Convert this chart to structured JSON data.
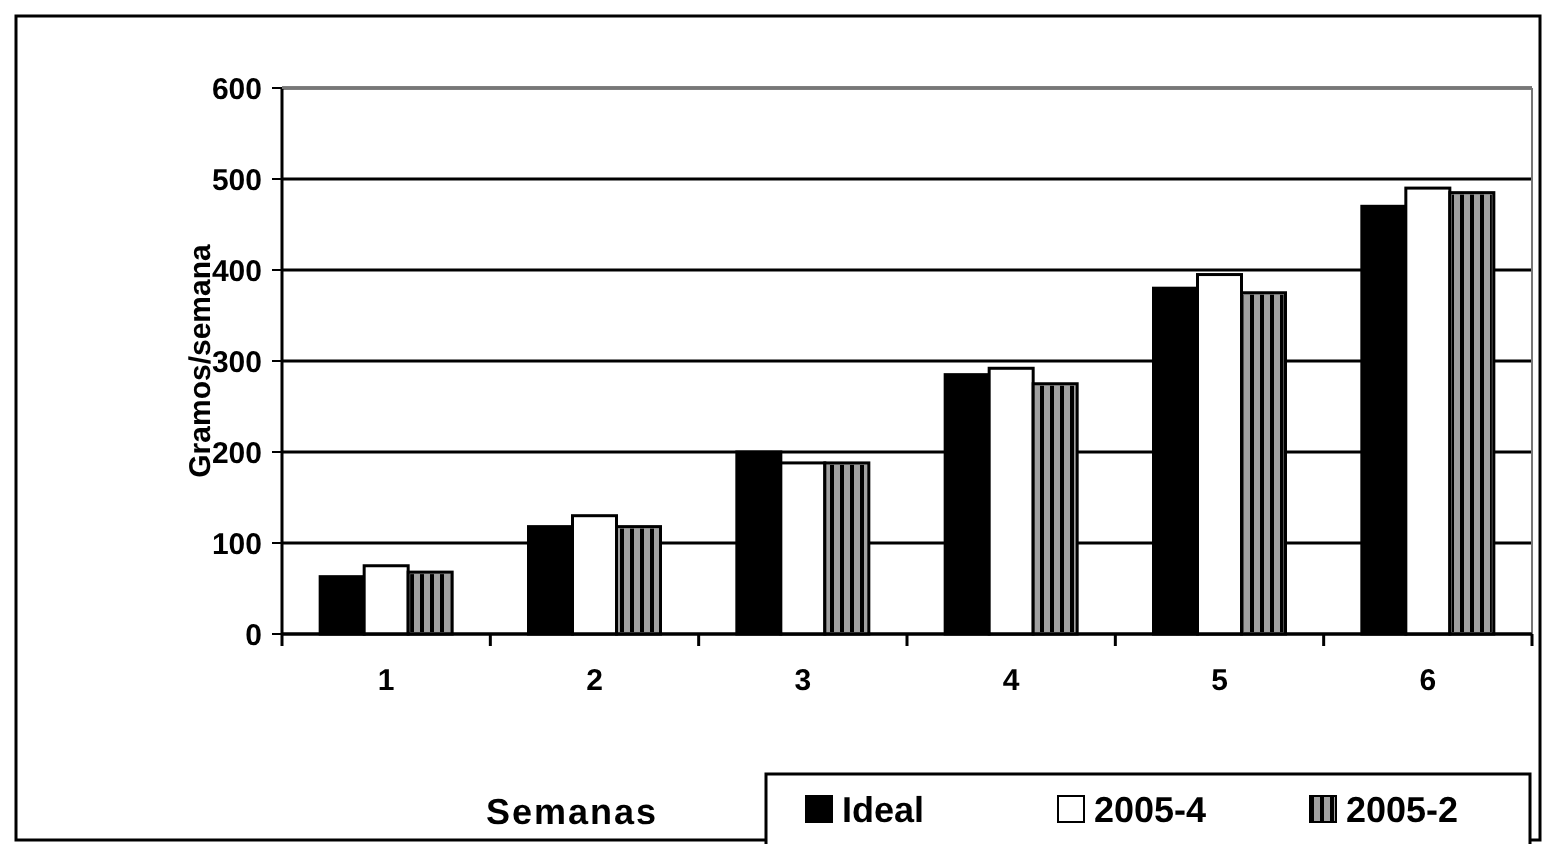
{
  "chart_data": {
    "type": "bar",
    "xlabel": "Semanas",
    "ylabel": "Gramos/semana",
    "categories": [
      "1",
      "2",
      "3",
      "4",
      "5",
      "6"
    ],
    "series": [
      {
        "name": "Ideal",
        "color": "#000000",
        "values": [
          63,
          118,
          200,
          285,
          380,
          470
        ]
      },
      {
        "name": "2005-4",
        "color": "#ffffff",
        "values": [
          75,
          130,
          188,
          292,
          395,
          490
        ]
      },
      {
        "name": "2005-2",
        "color": "#a0a0a0",
        "values": [
          68,
          118,
          188,
          275,
          375,
          485
        ]
      }
    ],
    "ylim": [
      0,
      600
    ],
    "yticks": [
      0,
      100,
      200,
      300,
      400,
      500,
      600
    ],
    "grid": "y",
    "legend": "bottom"
  }
}
